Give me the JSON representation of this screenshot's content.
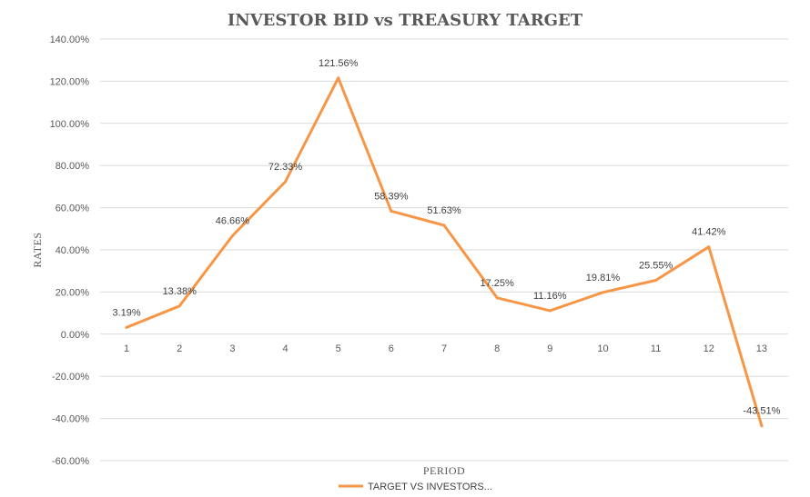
{
  "chart_data": {
    "type": "line",
    "title": "INVESTOR BID vs TREASURY TARGET",
    "xlabel": "PERIOD",
    "ylabel": "RATES",
    "categories": [
      "1",
      "2",
      "3",
      "4",
      "5",
      "6",
      "7",
      "8",
      "9",
      "10",
      "11",
      "12",
      "13"
    ],
    "series": [
      {
        "name": "TARGET VS INVESTORS...",
        "color": "#F79646",
        "values": [
          3.19,
          13.38,
          46.66,
          72.33,
          121.56,
          58.39,
          51.63,
          17.25,
          11.16,
          19.81,
          25.55,
          41.42,
          -43.51
        ],
        "labels": [
          "3.19%",
          "13.38%",
          "46.66%",
          "72.33%",
          "121.56%",
          "58.39%",
          "51.63%",
          "17.25%",
          "11.16%",
          "19.81%",
          "25.55%",
          "41.42%",
          "-43.51%"
        ]
      }
    ],
    "ylim": [
      -60,
      140
    ],
    "y_ticks": [
      "140.00%",
      "120.00%",
      "100.00%",
      "80.00%",
      "60.00%",
      "40.00%",
      "20.00%",
      "0.00%",
      "-20.00%",
      "-40.00%",
      "-60.00%"
    ],
    "y_tick_values": [
      140,
      120,
      100,
      80,
      60,
      40,
      20,
      0,
      -20,
      -40,
      -60
    ],
    "grid": true,
    "legend_position": "bottom"
  }
}
